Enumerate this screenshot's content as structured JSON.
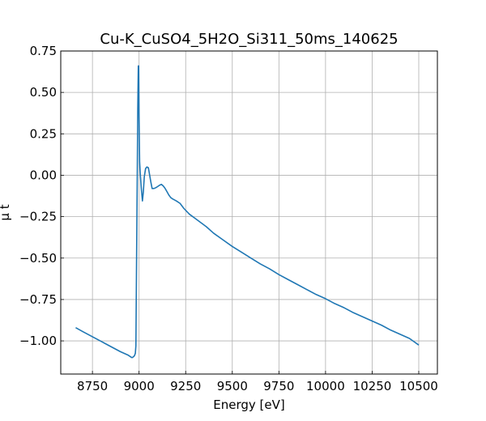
{
  "chart_data": {
    "type": "line",
    "title": "Cu-K_CuSO4_5H2O_Si311_50ms_140625",
    "xlabel": "Energy [eV]",
    "ylabel": "μ t",
    "xlim": [
      8580,
      10600
    ],
    "ylim": [
      -1.2,
      0.75
    ],
    "grid": true,
    "x_ticks": [
      8750,
      9000,
      9250,
      9500,
      9750,
      10000,
      10250,
      10500
    ],
    "y_ticks": [
      0.75,
      0.5,
      0.25,
      0.0,
      -0.25,
      -0.5,
      -0.75,
      -1.0
    ],
    "x_tick_labels": [
      "8750",
      "9000",
      "9250",
      "9500",
      "9750",
      "10000",
      "10250",
      "10500"
    ],
    "y_tick_labels": [
      "0.75",
      "0.50",
      "0.25",
      "0.00",
      "−0.25",
      "−0.50",
      "−0.75",
      "−1.00"
    ],
    "series": [
      {
        "color": "#1f77b4",
        "x": [
          8660,
          8700,
          8750,
          8800,
          8850,
          8900,
          8940,
          8960,
          8965,
          8975,
          8980,
          8983,
          8986,
          8990,
          8993,
          8996,
          8998,
          9000,
          9003,
          9007,
          9012,
          9018,
          9023,
          9028,
          9035,
          9042,
          9050,
          9057,
          9063,
          9070,
          9080,
          9090,
          9100,
          9110,
          9120,
          9130,
          9140,
          9150,
          9160,
          9170,
          9180,
          9200,
          9220,
          9240,
          9270,
          9300,
          9330,
          9360,
          9400,
          9450,
          9500,
          9550,
          9600,
          9650,
          9700,
          9750,
          9800,
          9850,
          9900,
          9950,
          10000,
          10050,
          10100,
          10150,
          10200,
          10250,
          10300,
          10350,
          10400,
          10450,
          10500
        ],
        "y": [
          -0.92,
          -0.945,
          -0.975,
          -1.005,
          -1.035,
          -1.065,
          -1.085,
          -1.1,
          -1.1,
          -1.09,
          -1.075,
          -1.03,
          -0.6,
          -0.05,
          0.4,
          0.66,
          0.66,
          0.35,
          0.08,
          0.0,
          -0.08,
          -0.155,
          -0.1,
          -0.01,
          0.04,
          0.05,
          0.045,
          0.0,
          -0.04,
          -0.08,
          -0.08,
          -0.075,
          -0.068,
          -0.06,
          -0.055,
          -0.065,
          -0.08,
          -0.1,
          -0.12,
          -0.135,
          -0.143,
          -0.155,
          -0.17,
          -0.2,
          -0.235,
          -0.26,
          -0.285,
          -0.31,
          -0.35,
          -0.39,
          -0.43,
          -0.465,
          -0.5,
          -0.535,
          -0.565,
          -0.6,
          -0.63,
          -0.66,
          -0.69,
          -0.72,
          -0.745,
          -0.775,
          -0.8,
          -0.83,
          -0.855,
          -0.88,
          -0.905,
          -0.935,
          -0.96,
          -0.985,
          -1.025
        ]
      }
    ]
  }
}
